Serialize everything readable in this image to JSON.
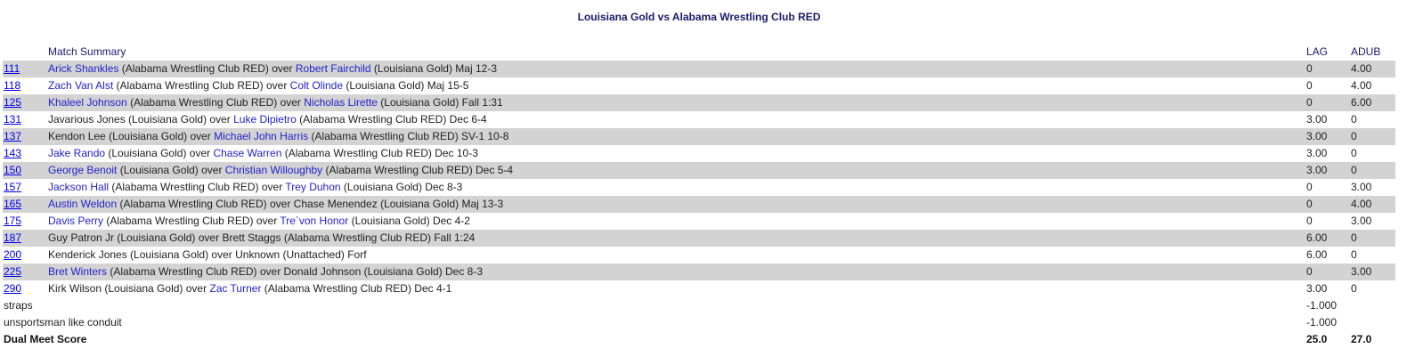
{
  "title": "Louisiana Gold vs Alabama Wrestling Club RED",
  "header": {
    "summary": "Match Summary",
    "team1": "LAG",
    "team2": "ADUB"
  },
  "matches": [
    {
      "weight": "111",
      "w1": "Arick Shankles",
      "w1_linked": true,
      "w1_team": " (Alabama Wrestling Club RED) over ",
      "w2": "Robert Fairchild",
      "w2_linked": true,
      "w2_team": " (Louisiana Gold) Maj 12-3",
      "lag": "0",
      "adub": "4.00"
    },
    {
      "weight": "118",
      "w1": "Zach Van Alst",
      "w1_linked": true,
      "w1_team": " (Alabama Wrestling Club RED) over ",
      "w2": "Colt Olinde",
      "w2_linked": true,
      "w2_team": " (Louisiana Gold) Maj 15-5",
      "lag": "0",
      "adub": "4.00"
    },
    {
      "weight": "125",
      "w1": "Khaleel Johnson",
      "w1_linked": true,
      "w1_team": " (Alabama Wrestling Club RED) over ",
      "w2": "Nicholas Lirette",
      "w2_linked": true,
      "w2_team": " (Louisiana Gold) Fall 1:31",
      "lag": "0",
      "adub": "6.00"
    },
    {
      "weight": "131",
      "w1": "Javarious Jones",
      "w1_linked": false,
      "w1_team": " (Louisiana Gold) over ",
      "w2": "Luke Dipietro",
      "w2_linked": true,
      "w2_team": " (Alabama Wrestling Club RED) Dec 6-4",
      "lag": "3.00",
      "adub": "0"
    },
    {
      "weight": "137",
      "w1": "Kendon Lee",
      "w1_linked": false,
      "w1_team": " (Louisiana Gold) over ",
      "w2": "Michael John Harris",
      "w2_linked": true,
      "w2_team": " (Alabama Wrestling Club RED) SV-1 10-8",
      "lag": "3.00",
      "adub": "0"
    },
    {
      "weight": "143",
      "w1": "Jake Rando",
      "w1_linked": true,
      "w1_team": " (Louisiana Gold) over ",
      "w2": "Chase Warren",
      "w2_linked": true,
      "w2_team": " (Alabama Wrestling Club RED) Dec 10-3",
      "lag": "3.00",
      "adub": "0"
    },
    {
      "weight": "150",
      "w1": "George Benoit",
      "w1_linked": true,
      "w1_team": " (Louisiana Gold) over ",
      "w2": "Christian Willoughby",
      "w2_linked": true,
      "w2_team": " (Alabama Wrestling Club RED) Dec 5-4",
      "lag": "3.00",
      "adub": "0"
    },
    {
      "weight": "157",
      "w1": "Jackson Hall",
      "w1_linked": true,
      "w1_team": " (Alabama Wrestling Club RED) over ",
      "w2": "Trey Duhon",
      "w2_linked": true,
      "w2_team": " (Louisiana Gold) Dec 8-3",
      "lag": "0",
      "adub": "3.00"
    },
    {
      "weight": "165",
      "w1": "Austin Weldon",
      "w1_linked": true,
      "w1_team": " (Alabama Wrestling Club RED) over ",
      "w2": "Chase Menendez",
      "w2_linked": false,
      "w2_team": " (Louisiana Gold) Maj 13-3",
      "lag": "0",
      "adub": "4.00"
    },
    {
      "weight": "175",
      "w1": "Davis Perry",
      "w1_linked": true,
      "w1_team": " (Alabama Wrestling Club RED) over ",
      "w2": "Tre`von Honor",
      "w2_linked": true,
      "w2_team": " (Louisiana Gold) Dec 4-2",
      "lag": "0",
      "adub": "3.00"
    },
    {
      "weight": "187",
      "w1": "Guy Patron Jr",
      "w1_linked": false,
      "w1_team": " (Louisiana Gold) over ",
      "w2": "Brett Staggs",
      "w2_linked": false,
      "w2_team": " (Alabama Wrestling Club RED) Fall 1:24",
      "lag": "6.00",
      "adub": "0"
    },
    {
      "weight": "200",
      "w1": "Kenderick Jones",
      "w1_linked": false,
      "w1_team": " (Louisiana Gold) over ",
      "w2": "Unknown",
      "w2_linked": false,
      "w2_team": " (Unattached) Forf",
      "lag": "6.00",
      "adub": "0"
    },
    {
      "weight": "225",
      "w1": "Bret Winters",
      "w1_linked": true,
      "w1_team": " (Alabama Wrestling Club RED) over ",
      "w2": "Donald Johnson",
      "w2_linked": false,
      "w2_team": " (Louisiana Gold) Dec 8-3",
      "lag": "0",
      "adub": "3.00"
    },
    {
      "weight": "290",
      "w1": "Kirk Wilson",
      "w1_linked": false,
      "w1_team": " (Louisiana Gold) over ",
      "w2": "Zac Turner",
      "w2_linked": true,
      "w2_team": " (Alabama Wrestling Club RED) Dec 4-1",
      "lag": "3.00",
      "adub": "0"
    }
  ],
  "penalties": [
    {
      "label": "straps",
      "lag": "-1.000",
      "adub": ""
    },
    {
      "label": "unsportsman like conduit",
      "lag": "-1.000",
      "adub": ""
    }
  ],
  "total": {
    "label": "Dual Meet Score",
    "lag": "25.0",
    "adub": "27.0"
  },
  "colors": {
    "row_shade": "#d3d3d3",
    "title": "#1a1a6e",
    "link": "#0000ee",
    "wrestler_link": "#2222cc"
  }
}
